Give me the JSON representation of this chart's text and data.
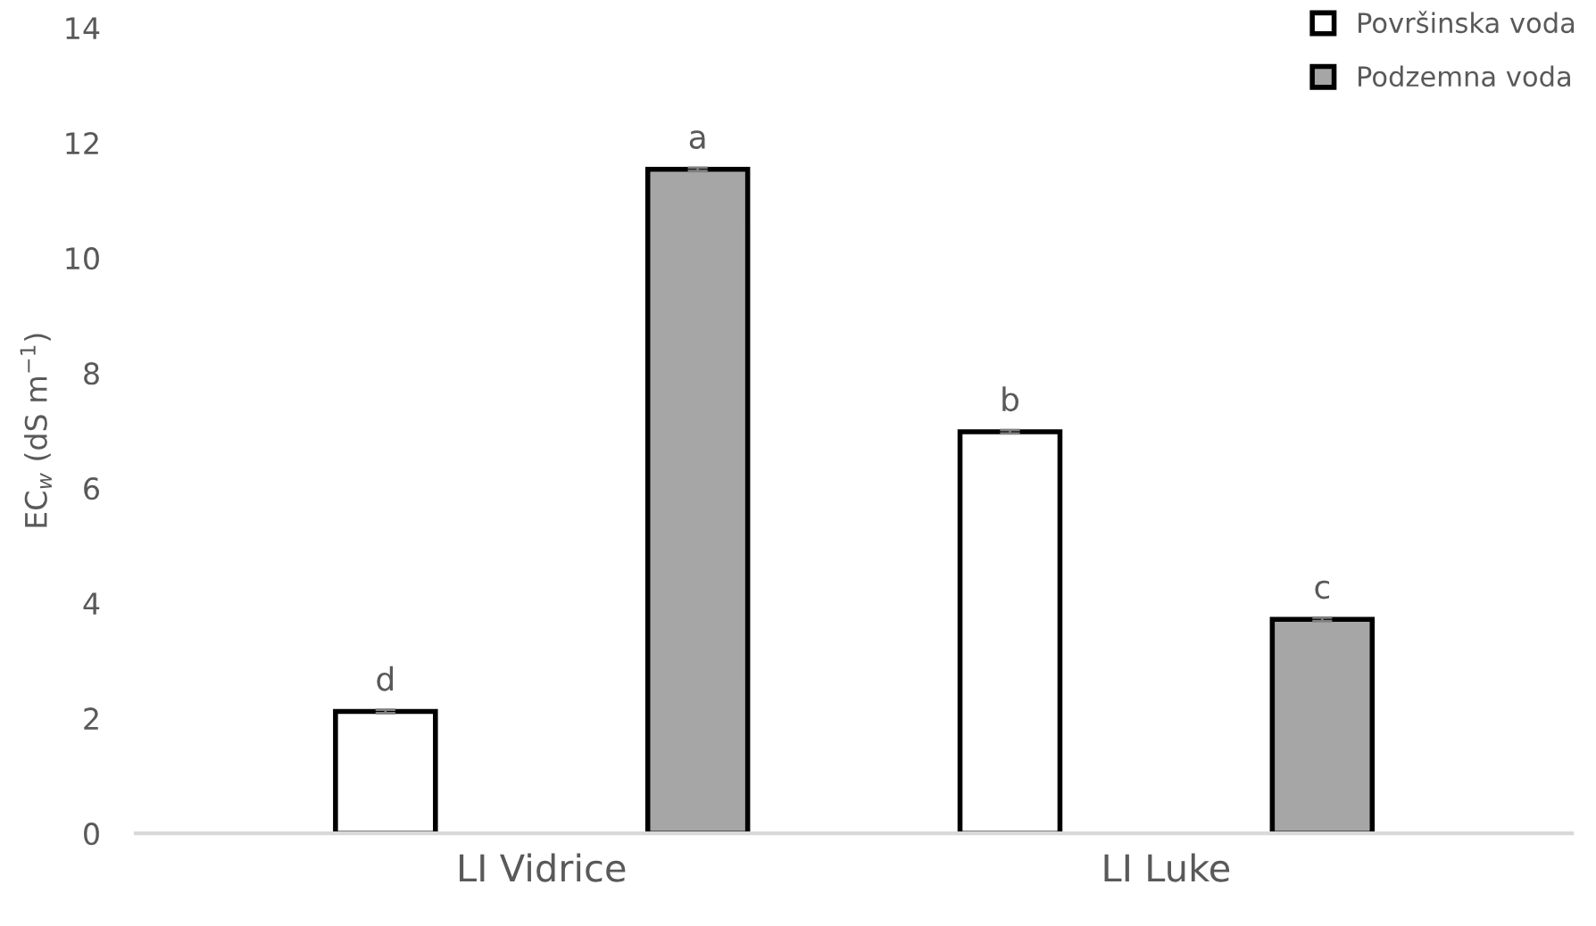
{
  "chart_data": {
    "type": "bar",
    "ylabel": "EC$_{w}$ (dS m$^{−1}$)",
    "categories": [
      "LI Vidrice",
      "LI Luke"
    ],
    "series": [
      {
        "name": "Površinska voda",
        "color": "#ffffff",
        "values": [
          2.12,
          6.98
        ],
        "errors": [
          0.03,
          0.03
        ],
        "value_labels": [
          "d",
          "b"
        ]
      },
      {
        "name": "Podzemna voda",
        "color": "#a6a6a6",
        "values": [
          11.54,
          3.72
        ],
        "errors": [
          0.03,
          0.03
        ],
        "value_labels": [
          "a",
          "c"
        ]
      }
    ],
    "ylim": [
      0,
      14
    ],
    "yticks": [
      0,
      2,
      4,
      6,
      8,
      10,
      12,
      14
    ],
    "grid": false,
    "legend": "top right"
  }
}
